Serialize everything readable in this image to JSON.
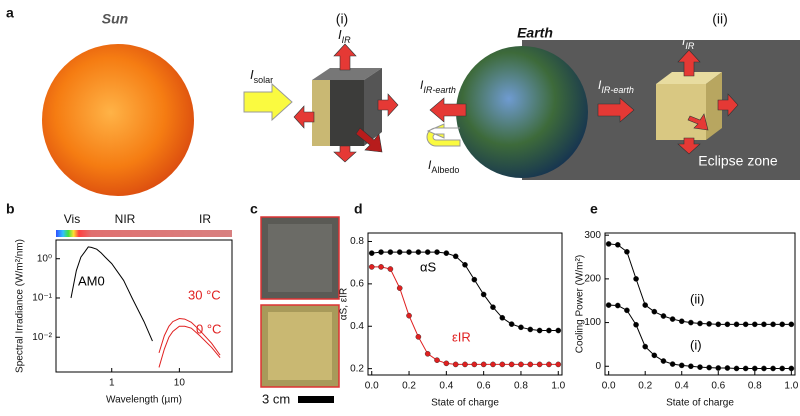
{
  "figure": {
    "panels": [
      "a",
      "b",
      "c",
      "d",
      "e"
    ],
    "sun": "Sun",
    "earth": "Earth",
    "stage_i": "(i)",
    "stage_ii": "(ii)",
    "eclipse": "Eclipse zone",
    "scale": "3 cm",
    "i_solar": {
      "main": "I",
      "sub": "solar"
    },
    "i_ir_1": {
      "main": "I",
      "sub": "IR"
    },
    "i_ir_earth_1": {
      "main": "I",
      "sub": "IR-earth"
    },
    "i_albedo": {
      "main": "I",
      "sub": "Albedo"
    },
    "i_ir_earth_2": {
      "main": "I",
      "sub": "IR-earth"
    },
    "i_ir_2": {
      "main": "I",
      "sub": "IR"
    }
  },
  "chart_data": [
    {
      "type": "line",
      "xlabel": "Wavelength (µm)",
      "ylabel": "Spectral Irradiance (W/m²/nm)",
      "xscale": "log",
      "yscale": "log",
      "xlim": [
        0.15,
        60
      ],
      "ylim": [
        0.0013,
        3
      ],
      "xticks": [
        1,
        10
      ],
      "yticks": [
        {
          "value": 1,
          "label": "10⁰"
        },
        {
          "value": 0.1,
          "label": "10⁻¹"
        },
        {
          "value": 0.01,
          "label": "10⁻²"
        }
      ],
      "bands": [
        "Vis",
        "NIR",
        "IR"
      ],
      "markers": false,
      "series": [
        {
          "name": "AM0",
          "color": "#000000",
          "x": [
            0.25,
            0.3,
            0.35,
            0.4,
            0.45,
            0.5,
            0.6,
            0.7,
            0.8,
            1,
            1.5,
            2,
            3,
            4
          ],
          "values": [
            0.1,
            0.5,
            1.1,
            1.5,
            2.0,
            1.95,
            1.75,
            1.4,
            1.1,
            0.75,
            0.28,
            0.1,
            0.025,
            0.008
          ]
        },
        {
          "name": "30 °C",
          "color": "#e02020",
          "x": [
            5,
            6,
            7,
            8,
            10,
            12,
            15,
            20,
            30,
            40
          ],
          "values": [
            0.004,
            0.011,
            0.019,
            0.025,
            0.03,
            0.029,
            0.024,
            0.015,
            0.007,
            0.0035
          ]
        },
        {
          "name": "0 °C",
          "color": "#e02020",
          "x": [
            5,
            6,
            7,
            8,
            10,
            12,
            15,
            20,
            30,
            40
          ],
          "values": [
            0.0017,
            0.005,
            0.01,
            0.014,
            0.019,
            0.019,
            0.017,
            0.011,
            0.0055,
            0.003
          ]
        }
      ]
    },
    {
      "type": "line",
      "xlabel": "State of charge",
      "ylabel": "αS, εIR",
      "xlim": [
        -0.02,
        1.02
      ],
      "ylim": [
        0.17,
        0.84
      ],
      "xticks": [
        {
          "value": 0,
          "label": "0.0"
        },
        0.2,
        0.4,
        0.6,
        0.8,
        {
          "value": 1,
          "label": "1.0"
        }
      ],
      "yticks": [
        0.2,
        0.4,
        0.6,
        0.8
      ],
      "markers": true,
      "x": [
        0,
        0.05,
        0.1,
        0.15,
        0.2,
        0.25,
        0.3,
        0.35,
        0.4,
        0.45,
        0.5,
        0.55,
        0.6,
        0.65,
        0.7,
        0.75,
        0.8,
        0.85,
        0.9,
        0.95,
        1
      ],
      "series": [
        {
          "name": "αS",
          "color": "#000000",
          "values": [
            0.745,
            0.75,
            0.75,
            0.75,
            0.75,
            0.75,
            0.75,
            0.75,
            0.745,
            0.73,
            0.69,
            0.62,
            0.55,
            0.49,
            0.44,
            0.41,
            0.395,
            0.385,
            0.38,
            0.38,
            0.38
          ]
        },
        {
          "name": "εIR",
          "color": "#e02020",
          "values": [
            0.68,
            0.68,
            0.67,
            0.58,
            0.45,
            0.35,
            0.27,
            0.24,
            0.225,
            0.22,
            0.22,
            0.22,
            0.22,
            0.22,
            0.22,
            0.22,
            0.22,
            0.22,
            0.22,
            0.22,
            0.22
          ]
        }
      ]
    },
    {
      "type": "line",
      "xlabel": "State of charge",
      "ylabel": "Cooling Power (W/m²)",
      "xlim": [
        -0.02,
        1.02
      ],
      "ylim": [
        -20,
        305
      ],
      "xticks": [
        {
          "value": 0,
          "label": "0.0"
        },
        0.2,
        0.4,
        0.6,
        0.8,
        {
          "value": 1,
          "label": "1.0"
        }
      ],
      "yticks": [
        0,
        100,
        200,
        300
      ],
      "markers": true,
      "x": [
        0,
        0.05,
        0.1,
        0.15,
        0.2,
        0.25,
        0.3,
        0.35,
        0.4,
        0.45,
        0.5,
        0.55,
        0.6,
        0.65,
        0.7,
        0.75,
        0.8,
        0.85,
        0.9,
        0.95,
        1
      ],
      "series": [
        {
          "name": "(ii)",
          "color": "#000000",
          "values": [
            280,
            278,
            262,
            200,
            140,
            125,
            115,
            108,
            103,
            100,
            98,
            97,
            96,
            96,
            96,
            96,
            96,
            96,
            96,
            96,
            96
          ]
        },
        {
          "name": "(i)",
          "color": "#000000",
          "values": [
            140,
            139,
            128,
            95,
            45,
            25,
            12,
            5,
            2,
            0,
            -2,
            -3,
            -4,
            -4,
            -5,
            -5,
            -5,
            -5,
            -5,
            -5,
            -5
          ]
        }
      ]
    }
  ]
}
